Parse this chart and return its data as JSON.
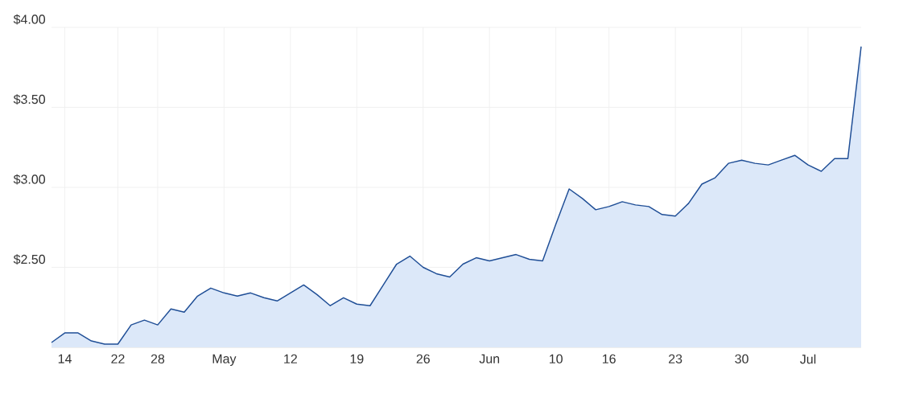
{
  "chart_data": {
    "type": "area",
    "categories": [
      null,
      "14",
      null,
      null,
      null,
      "22",
      null,
      null,
      "28",
      null,
      null,
      null,
      null,
      "May",
      null,
      null,
      null,
      null,
      "12",
      null,
      null,
      null,
      null,
      "19",
      null,
      null,
      null,
      null,
      "26",
      null,
      null,
      null,
      null,
      "Jun",
      null,
      null,
      null,
      null,
      "10",
      null,
      null,
      null,
      "16",
      null,
      null,
      null,
      null,
      "23",
      null,
      null,
      null,
      null,
      "30",
      null,
      null,
      null,
      null,
      "Jul",
      null,
      null,
      null,
      null
    ],
    "values": [
      2.03,
      2.09,
      2.09,
      2.04,
      2.02,
      2.02,
      2.14,
      2.17,
      2.14,
      2.24,
      2.22,
      2.32,
      2.37,
      2.34,
      2.32,
      2.34,
      2.31,
      2.29,
      2.34,
      2.39,
      2.33,
      2.26,
      2.31,
      2.27,
      2.26,
      2.39,
      2.52,
      2.57,
      2.5,
      2.46,
      2.44,
      2.52,
      2.56,
      2.54,
      2.56,
      2.58,
      2.55,
      2.54,
      2.77,
      2.99,
      2.93,
      2.86,
      2.88,
      2.91,
      2.89,
      2.88,
      2.83,
      2.82,
      2.9,
      3.02,
      3.06,
      3.15,
      3.17,
      3.15,
      3.14,
      3.17,
      3.2,
      3.14,
      3.1,
      3.18,
      3.18,
      3.88
    ],
    "color": "#1f4e96",
    "ylim": [
      2.0,
      4.0
    ],
    "yticks": [
      {
        "value": 2.5,
        "label": "$2.50"
      },
      {
        "value": 3.0,
        "label": "$3.00"
      },
      {
        "value": 3.5,
        "label": "$3.50"
      },
      {
        "value": 4.0,
        "label": "$4.00"
      }
    ],
    "grid": true
  }
}
